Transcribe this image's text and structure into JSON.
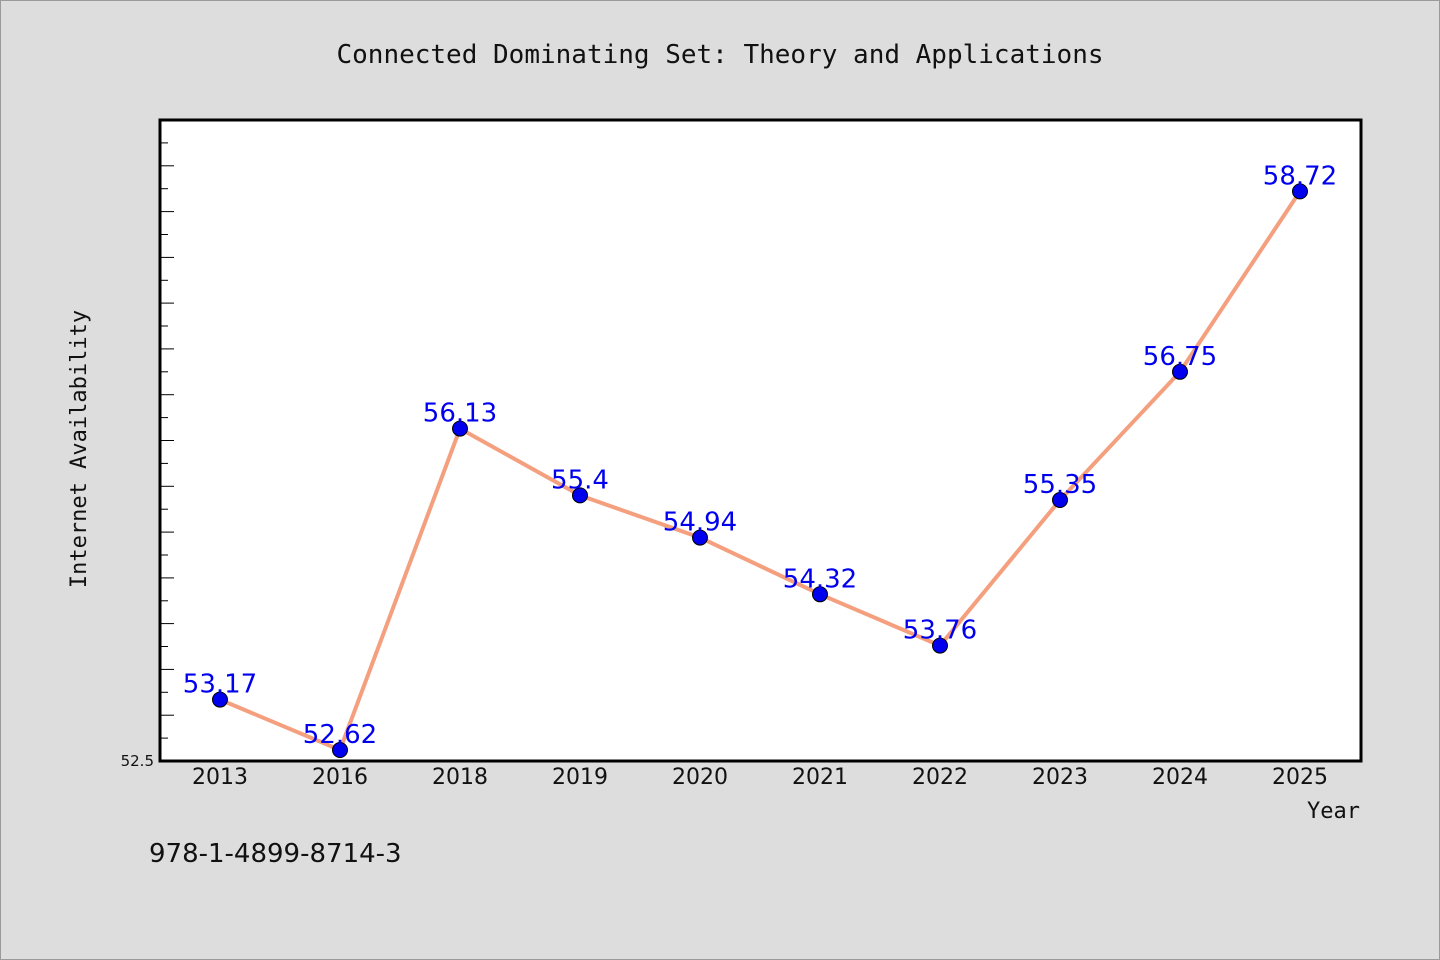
{
  "chart_data": {
    "type": "line",
    "title": "Connected Dominating Set: Theory and Applications",
    "xlabel": "Year",
    "ylabel": "Internet Availability",
    "categories": [
      "2013",
      "2016",
      "2018",
      "2019",
      "2020",
      "2021",
      "2022",
      "2023",
      "2024",
      "2025"
    ],
    "series": [
      {
        "values": [
          53.17,
          52.62,
          56.13,
          55.4,
          54.94,
          54.32,
          53.76,
          55.35,
          56.75,
          58.72
        ],
        "labels": [
          "53.17",
          "52.62",
          "56.13",
          "55.4",
          "54.94",
          "54.32",
          "53.76",
          "55.35",
          "56.75",
          "58.72"
        ]
      }
    ],
    "yticks": [
      {
        "value": 52.5,
        "label": "52.5"
      }
    ],
    "ylim": [
      52.5,
      59.5
    ],
    "grid": false,
    "legend": "none",
    "line_color": "#f4a07e",
    "marker_color": "#0000ee",
    "label_color": "#0000ee"
  },
  "footer": {
    "isbn": "978-1-4899-8714-3"
  },
  "colors": {
    "figure_background": "#dddddd",
    "plot_background": "#ffffff",
    "axes_frame": "#000000"
  }
}
